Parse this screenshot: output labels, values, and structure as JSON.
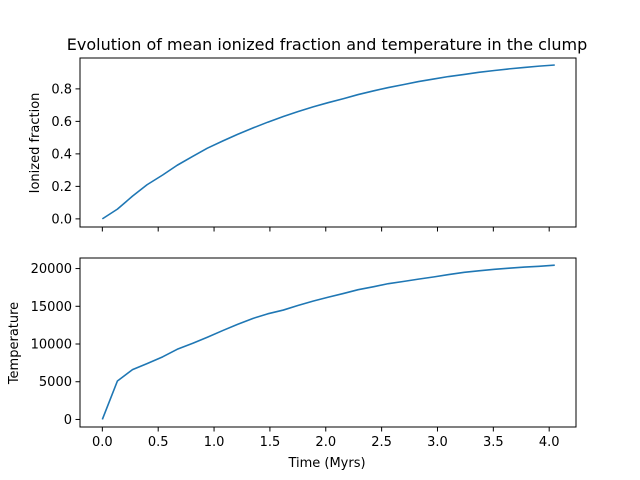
{
  "colors": {
    "line": "#1f77b4",
    "axes": "#000000",
    "background": "#ffffff"
  },
  "chart_data": [
    {
      "type": "line",
      "title": "Evolution of mean ionized fraction and temperature in the clump",
      "xlabel": "",
      "ylabel": "Ionized fraction",
      "xlim": [
        -0.2,
        4.24
      ],
      "ylim": [
        -0.05,
        0.99
      ],
      "x_ticks": [
        0.0,
        0.5,
        1.0,
        1.5,
        2.0,
        2.5,
        3.0,
        3.5,
        4.0
      ],
      "y_ticks": [
        0.0,
        0.2,
        0.4,
        0.6,
        0.8
      ],
      "y_tick_labels": [
        "0.0",
        "0.2",
        "0.4",
        "0.6",
        "0.8"
      ],
      "grid": false,
      "series": [
        {
          "x": [
            0.0,
            0.135,
            0.27,
            0.4,
            0.54,
            0.67,
            0.81,
            0.94,
            1.08,
            1.21,
            1.35,
            1.48,
            1.62,
            1.75,
            1.89,
            2.02,
            2.16,
            2.29,
            2.43,
            2.56,
            2.7,
            2.83,
            2.97,
            3.1,
            3.24,
            3.37,
            3.51,
            3.64,
            3.78,
            3.91,
            4.05
          ],
          "values": [
            0.0,
            0.06,
            0.14,
            0.21,
            0.27,
            0.33,
            0.385,
            0.435,
            0.48,
            0.52,
            0.56,
            0.595,
            0.63,
            0.66,
            0.69,
            0.715,
            0.74,
            0.765,
            0.788,
            0.808,
            0.827,
            0.845,
            0.861,
            0.876,
            0.889,
            0.902,
            0.913,
            0.923,
            0.932,
            0.94,
            0.947
          ]
        }
      ]
    },
    {
      "type": "line",
      "title": "",
      "xlabel": "Time (Myrs)",
      "ylabel": "Temperature",
      "xlim": [
        -0.2,
        4.24
      ],
      "ylim": [
        -1000,
        21400
      ],
      "x_ticks": [
        0.0,
        0.5,
        1.0,
        1.5,
        2.0,
        2.5,
        3.0,
        3.5,
        4.0
      ],
      "x_tick_labels": [
        "0.0",
        "0.5",
        "1.0",
        "1.5",
        "2.0",
        "2.5",
        "3.0",
        "3.5",
        "4.0"
      ],
      "y_ticks": [
        0,
        5000,
        10000,
        15000,
        20000
      ],
      "y_tick_labels": [
        "0",
        "5000",
        "10000",
        "15000",
        "20000"
      ],
      "grid": false,
      "series": [
        {
          "x": [
            0.0,
            0.135,
            0.27,
            0.4,
            0.54,
            0.67,
            0.81,
            0.94,
            1.08,
            1.21,
            1.35,
            1.48,
            1.62,
            1.75,
            1.89,
            2.02,
            2.16,
            2.29,
            2.43,
            2.56,
            2.7,
            2.83,
            2.97,
            3.1,
            3.24,
            3.37,
            3.51,
            3.64,
            3.78,
            3.91,
            4.05
          ],
          "values": [
            0,
            5100,
            6600,
            7400,
            8300,
            9300,
            10100,
            10900,
            11800,
            12600,
            13400,
            14000,
            14500,
            15100,
            15700,
            16200,
            16700,
            17200,
            17600,
            18000,
            18300,
            18600,
            18900,
            19200,
            19500,
            19700,
            19900,
            20050,
            20200,
            20300,
            20450
          ]
        }
      ]
    }
  ]
}
